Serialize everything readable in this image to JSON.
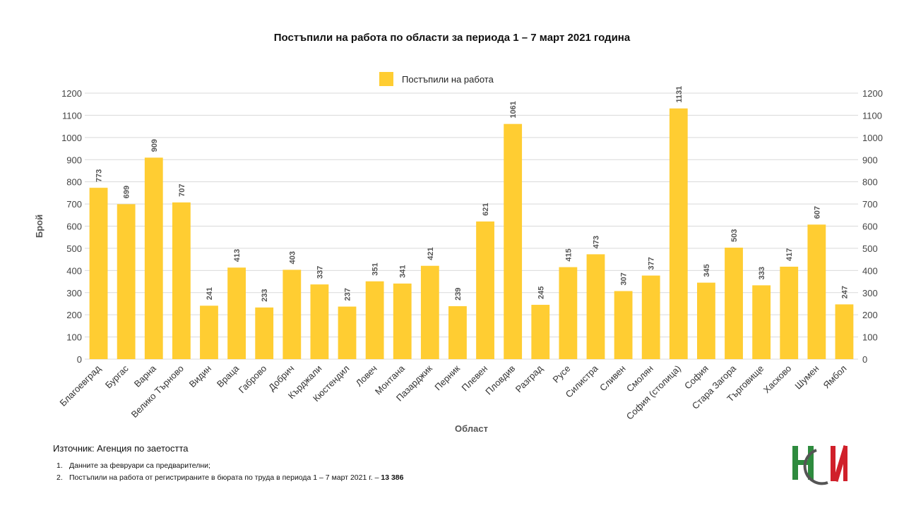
{
  "chart_data": {
    "type": "bar",
    "title": "Постъпили на работа по области за периода 1 – 7 март 2021 година",
    "xlabel": "Област",
    "ylabel": "Брой",
    "ylim": [
      0,
      1200
    ],
    "yticks": [
      0,
      100,
      200,
      300,
      400,
      500,
      600,
      700,
      800,
      900,
      1000,
      1100,
      1200
    ],
    "grid": true,
    "legend_position": "top-center",
    "categories": [
      "Благоевград",
      "Бургас",
      "Варна",
      "Велико Търново",
      "Видин",
      "Враца",
      "Габрово",
      "Добрич",
      "Кърджали",
      "Кюстендил",
      "Ловеч",
      "Монтана",
      "Пазарджик",
      "Перник",
      "Плевен",
      "Пловдив",
      "Разград",
      "Русе",
      "Силистра",
      "Сливен",
      "Смолян",
      "София (столица)",
      "София",
      "Стара Загора",
      "Търговище",
      "Хасково",
      "Шумен",
      "Ямбол"
    ],
    "series": [
      {
        "name": "Постъпили на работа",
        "color": "#FFCD32",
        "values": [
          773,
          699,
          909,
          707,
          241,
          413,
          233,
          403,
          337,
          237,
          351,
          341,
          421,
          239,
          621,
          1061,
          245,
          415,
          473,
          307,
          377,
          1131,
          345,
          503,
          333,
          417,
          607,
          247
        ]
      }
    ]
  },
  "footer": {
    "source": "Източник: Агенция по заетостта",
    "notes": [
      {
        "num": "1.",
        "text": "Данните за февруари са предварителни;",
        "bold": ""
      },
      {
        "num": "2.",
        "text": "Постъпили на работа от регистрираните в бюрата по труда в периода  1 – 7 март 2021 г. – ",
        "bold": "13 386"
      }
    ]
  },
  "logo": {
    "colors": [
      "#2E8B3E",
      "#D0202A",
      "#555555"
    ],
    "icon": "nsi-logo-icon"
  }
}
